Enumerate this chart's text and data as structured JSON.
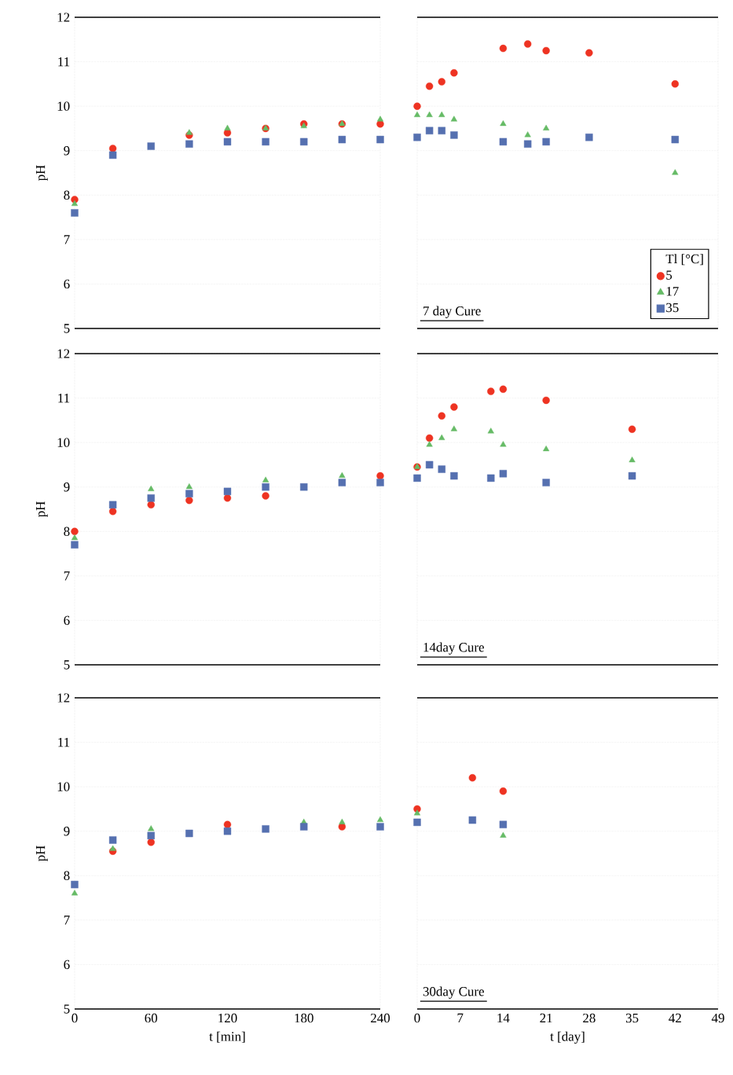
{
  "chart_data": [
    {
      "type": "scatter",
      "x": [
        0,
        30,
        60,
        90,
        120,
        150,
        180,
        210,
        240
      ],
      "xlim": [
        0,
        240
      ],
      "xticks": [
        0,
        60,
        120,
        180,
        240
      ],
      "ylim": [
        5,
        12
      ],
      "yticks": [
        5,
        6,
        7,
        8,
        9,
        10,
        11,
        12
      ],
      "ylabel": "pH",
      "tick_labels": "y",
      "grid": "y",
      "series": [
        {
          "color": "#ee3322",
          "marker": "circle",
          "values": [
            7.9,
            9.05,
            null,
            9.35,
            9.4,
            9.5,
            9.6,
            9.6,
            9.6
          ]
        },
        {
          "color": "#66bb66",
          "marker": "triangle",
          "values": [
            7.8,
            null,
            null,
            9.4,
            9.5,
            9.5,
            9.55,
            9.6,
            9.7
          ]
        },
        {
          "color": "#5570b0",
          "marker": "square",
          "values": [
            7.6,
            8.9,
            9.1,
            9.15,
            9.2,
            9.2,
            9.2,
            9.25,
            9.25
          ]
        }
      ]
    },
    {
      "type": "scatter",
      "x": [
        0,
        2,
        4,
        6,
        14,
        18,
        21,
        28,
        42
      ],
      "xlim": [
        0,
        49
      ],
      "xticks": [
        0,
        7,
        14,
        21,
        28,
        35,
        42,
        49
      ],
      "ylim": [
        5,
        12
      ],
      "yticks": [
        5,
        6,
        7,
        8,
        9,
        10,
        11,
        12
      ],
      "tick_labels": false,
      "grid": "y",
      "annotations": [
        "7 day Cure"
      ],
      "legend": "bottom right",
      "legend_title": "Tl [°C]",
      "series": [
        {
          "name": "5",
          "color": "#ee3322",
          "marker": "circle",
          "values": [
            10.0,
            10.45,
            10.55,
            10.75,
            11.3,
            11.4,
            11.25,
            11.2,
            10.5
          ]
        },
        {
          "name": "17",
          "color": "#66bb66",
          "marker": "triangle",
          "values": [
            9.8,
            9.8,
            9.8,
            9.7,
            9.6,
            9.35,
            9.5,
            null,
            8.5
          ]
        },
        {
          "name": "35",
          "color": "#5570b0",
          "marker": "square",
          "values": [
            9.3,
            9.45,
            9.45,
            9.35,
            9.2,
            9.15,
            9.2,
            9.3,
            9.25
          ]
        }
      ]
    },
    {
      "type": "scatter",
      "x": [
        0,
        30,
        60,
        90,
        120,
        150,
        180,
        210,
        240
      ],
      "xlim": [
        0,
        240
      ],
      "xticks": [
        0,
        60,
        120,
        180,
        240
      ],
      "ylim": [
        5,
        12
      ],
      "yticks": [
        5,
        6,
        7,
        8,
        9,
        10,
        11,
        12
      ],
      "ylabel": "pH",
      "tick_labels": "y",
      "grid": "y",
      "series": [
        {
          "color": "#ee3322",
          "marker": "circle",
          "values": [
            8.0,
            8.45,
            8.6,
            8.7,
            8.75,
            8.8,
            null,
            null,
            9.25
          ]
        },
        {
          "color": "#66bb66",
          "marker": "triangle",
          "values": [
            7.85,
            null,
            8.95,
            9.0,
            null,
            9.15,
            null,
            9.25,
            null
          ]
        },
        {
          "color": "#5570b0",
          "marker": "square",
          "values": [
            7.7,
            8.6,
            8.75,
            8.85,
            8.9,
            9.0,
            9.0,
            9.1,
            9.1
          ]
        }
      ]
    },
    {
      "type": "scatter",
      "x": [
        0,
        2,
        4,
        6,
        12,
        14,
        21,
        35
      ],
      "xlim": [
        0,
        49
      ],
      "xticks": [
        0,
        7,
        14,
        21,
        28,
        35,
        42,
        49
      ],
      "ylim": [
        5,
        12
      ],
      "yticks": [
        5,
        6,
        7,
        8,
        9,
        10,
        11,
        12
      ],
      "tick_labels": false,
      "grid": "y",
      "annotations": [
        "14day Cure"
      ],
      "series": [
        {
          "color": "#ee3322",
          "marker": "circle",
          "values": [
            9.45,
            10.1,
            10.6,
            10.8,
            11.15,
            11.2,
            10.95,
            10.3
          ]
        },
        {
          "color": "#66bb66",
          "marker": "triangle",
          "values": [
            9.45,
            9.95,
            10.1,
            10.3,
            10.25,
            9.95,
            9.85,
            9.6
          ]
        },
        {
          "color": "#5570b0",
          "marker": "square",
          "values": [
            9.2,
            9.5,
            9.4,
            9.25,
            9.2,
            9.3,
            9.1,
            9.25
          ]
        }
      ]
    },
    {
      "type": "scatter",
      "x": [
        0,
        30,
        60,
        90,
        120,
        150,
        180,
        210,
        240
      ],
      "xlim": [
        0,
        240
      ],
      "xticks": [
        0,
        60,
        120,
        180,
        240
      ],
      "ylim": [
        5,
        12
      ],
      "yticks": [
        5,
        6,
        7,
        8,
        9,
        10,
        11,
        12
      ],
      "ylabel": "pH",
      "xlabel": "t [min]",
      "grid": "y",
      "series": [
        {
          "color": "#ee3322",
          "marker": "circle",
          "values": [
            null,
            8.55,
            8.75,
            null,
            9.15,
            null,
            null,
            9.1,
            null
          ]
        },
        {
          "color": "#66bb66",
          "marker": "triangle",
          "values": [
            7.6,
            8.6,
            9.05,
            null,
            null,
            null,
            9.2,
            9.2,
            9.25
          ]
        },
        {
          "color": "#5570b0",
          "marker": "square",
          "values": [
            7.8,
            8.8,
            8.9,
            8.95,
            9.0,
            9.05,
            9.1,
            null,
            9.1
          ]
        }
      ]
    },
    {
      "type": "scatter",
      "x": [
        0,
        9,
        14
      ],
      "xlim": [
        0,
        49
      ],
      "xticks": [
        0,
        7,
        14,
        21,
        28,
        35,
        42,
        49
      ],
      "ylim": [
        5,
        12
      ],
      "yticks": [
        5,
        6,
        7,
        8,
        9,
        10,
        11,
        12
      ],
      "xlabel": "t [day]",
      "tick_labels": "x",
      "grid": "y",
      "annotations": [
        "30day Cure"
      ],
      "series": [
        {
          "color": "#ee3322",
          "marker": "circle",
          "values": [
            9.5,
            10.2,
            9.9
          ]
        },
        {
          "color": "#66bb66",
          "marker": "triangle",
          "values": [
            9.4,
            null,
            8.9
          ]
        },
        {
          "color": "#5570b0",
          "marker": "square",
          "values": [
            9.2,
            9.25,
            9.15
          ]
        }
      ]
    }
  ]
}
